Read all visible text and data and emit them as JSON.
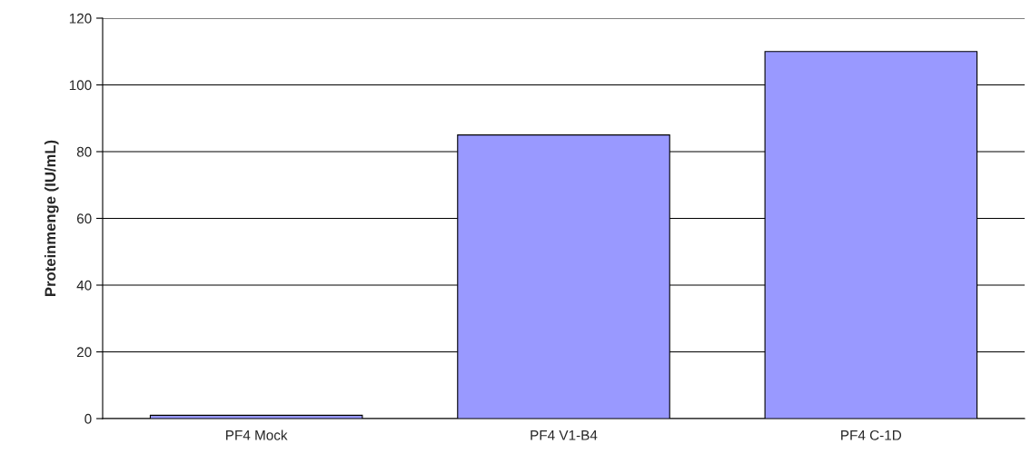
{
  "chart_data": {
    "type": "bar",
    "ylabel": "Proteinmenge (IU/mL)",
    "categories": [
      "PF4 Mock",
      "PF4 V1-B4",
      "PF4 C-1D"
    ],
    "values": [
      1,
      85,
      110
    ],
    "color": "#9999ff",
    "ylim": [
      0,
      120
    ],
    "yticks": [
      0,
      20,
      40,
      60,
      80,
      100,
      120
    ],
    "grid": "y",
    "legend": false
  }
}
